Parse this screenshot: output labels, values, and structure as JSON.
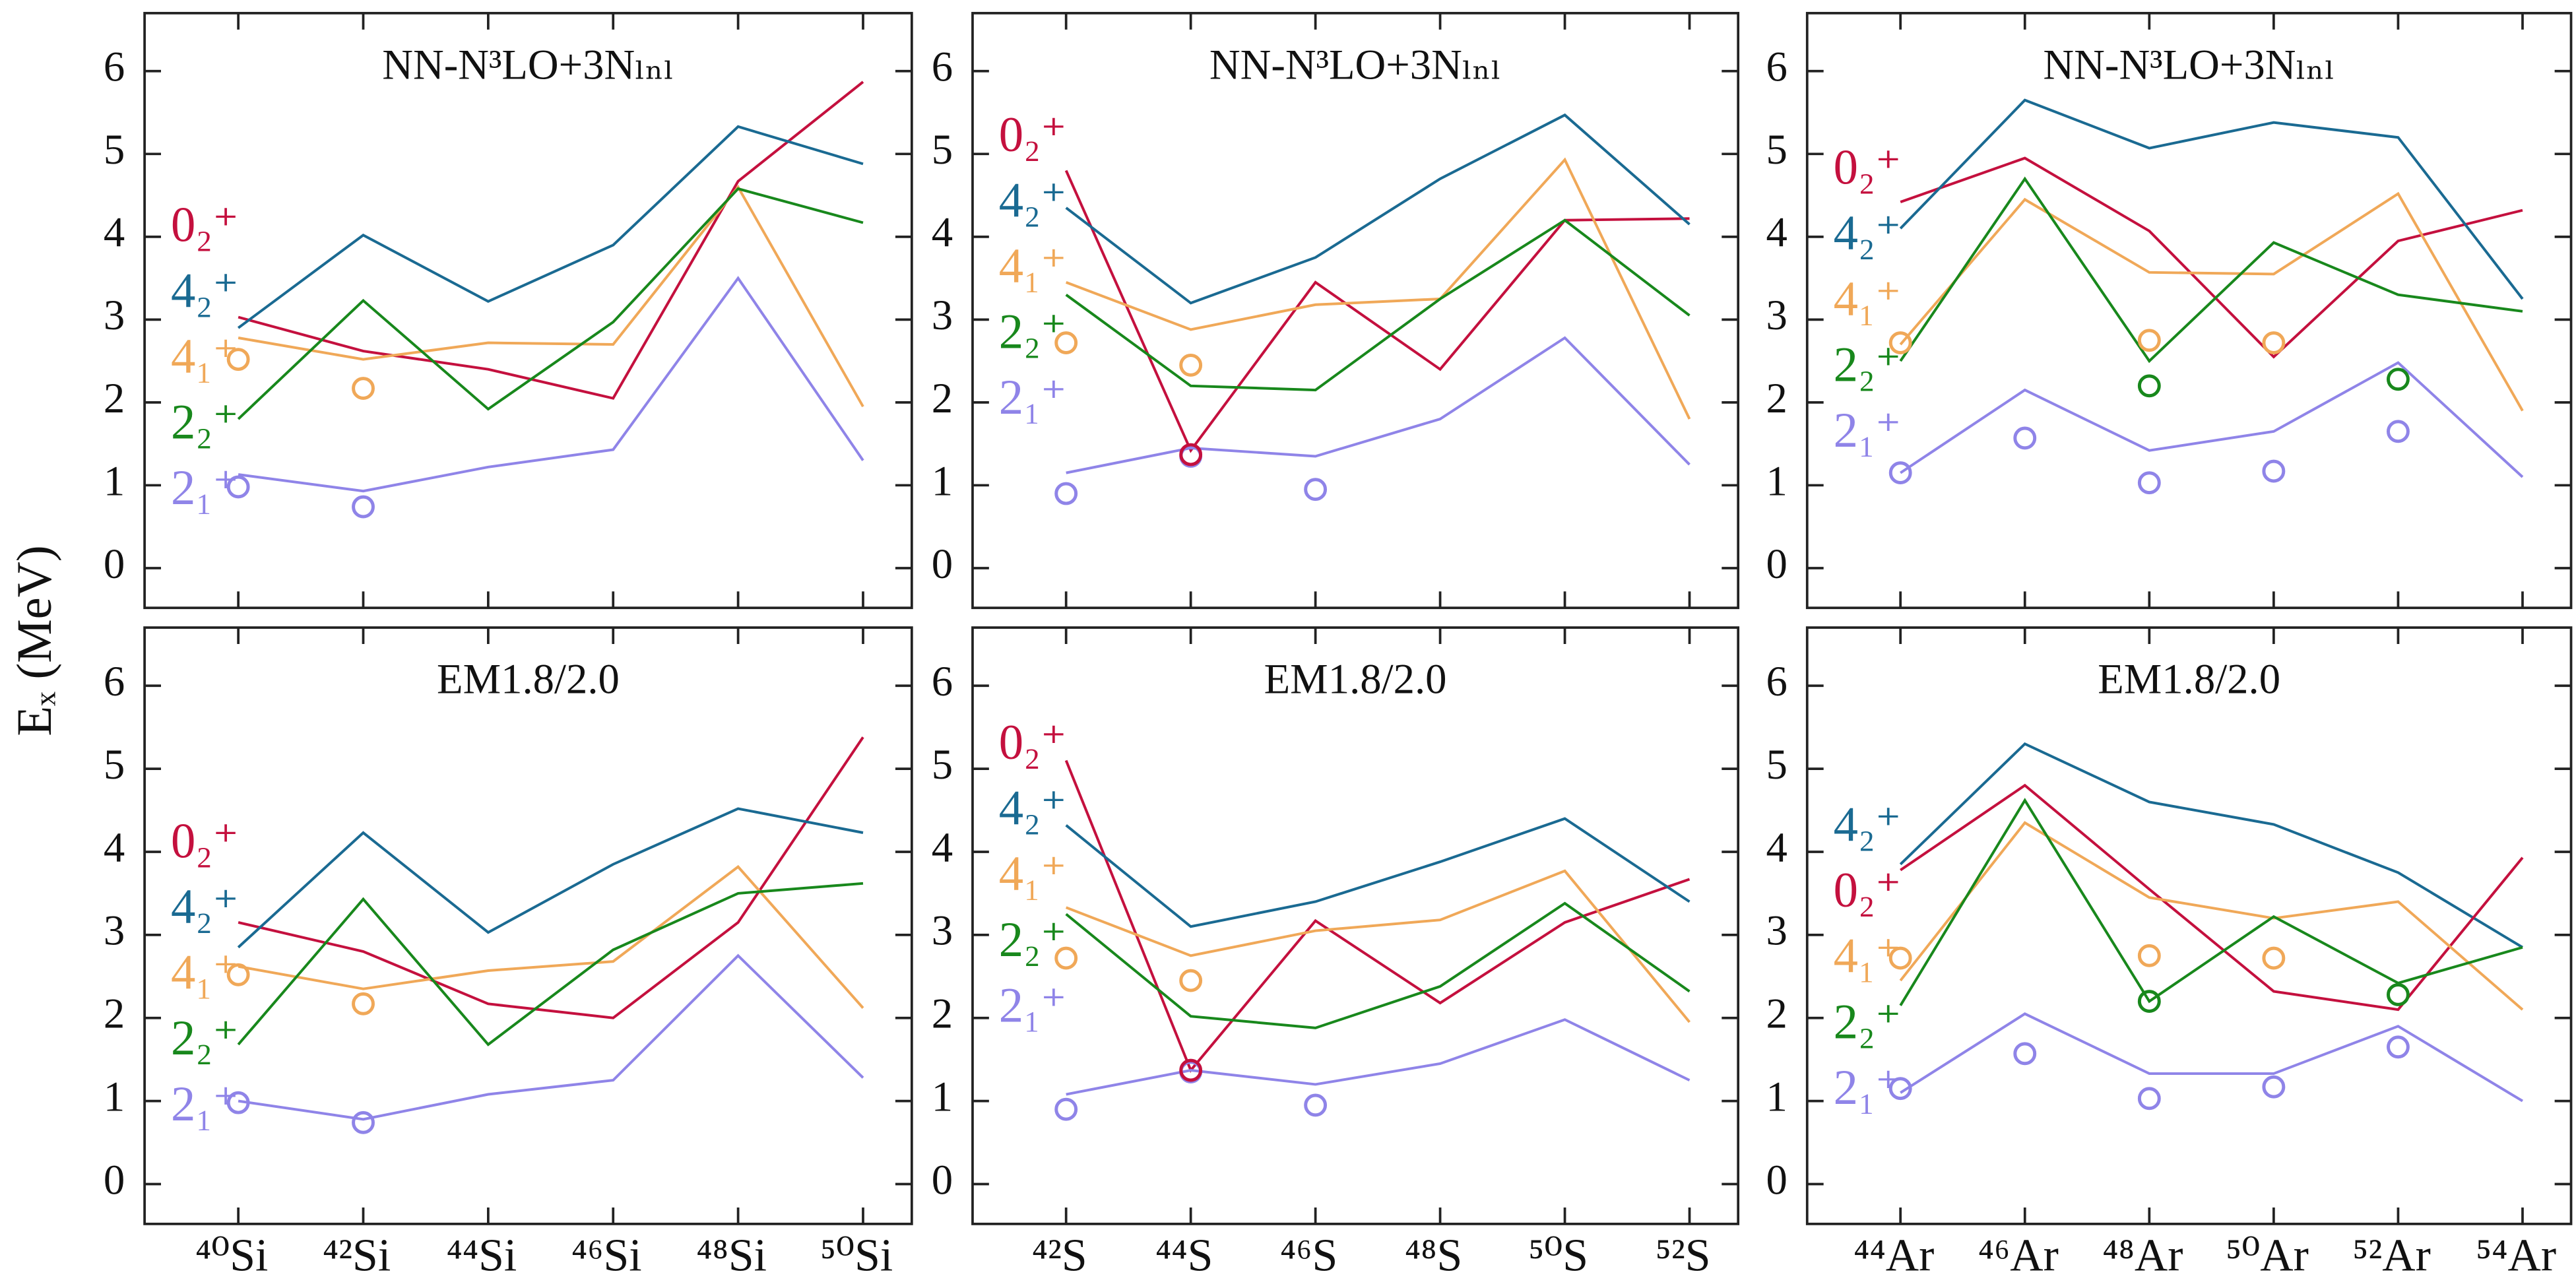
{
  "ylabel": "Eₓ (MeV)",
  "chart_data": [
    {
      "type": "line",
      "title": "NN-N³LO+3Nₗₙₗ",
      "ylim": [
        -0.48,
        6.7
      ],
      "yticks": [
        0,
        1,
        2,
        3,
        4,
        5,
        6
      ],
      "series": [
        {
          "name": "0₂⁺",
          "color": "#c4103e",
          "values": [
            3.03,
            2.62,
            2.4,
            2.05,
            4.67,
            5.87
          ]
        },
        {
          "name": "4₂⁺",
          "color": "#1a6a92",
          "values": [
            2.9,
            4.02,
            3.22,
            3.9,
            5.33,
            4.88
          ]
        },
        {
          "name": "4₁⁺",
          "color": "#f0a858",
          "values": [
            2.78,
            2.52,
            2.72,
            2.7,
            4.6,
            1.95
          ]
        },
        {
          "name": "2₂⁺",
          "color": "#18881c",
          "values": [
            1.8,
            3.23,
            1.92,
            2.97,
            4.58,
            4.17
          ]
        },
        {
          "name": "2₁⁺",
          "color": "#8f84e8",
          "values": [
            1.13,
            0.93,
            1.22,
            1.43,
            3.5,
            1.3
          ]
        },
        {
          "color": "#8f84e8",
          "marker": "circle",
          "values": [
            0.98,
            0.74,
            null,
            null,
            null,
            null
          ]
        },
        {
          "color": "#f0a858",
          "marker": "circle",
          "values": [
            2.52,
            2.17,
            null,
            null,
            null,
            null
          ]
        }
      ]
    },
    {
      "type": "line",
      "title": "NN-N³LO+3Nₗₙₗ",
      "ylim": [
        -0.48,
        6.7
      ],
      "yticks": [
        0,
        1,
        2,
        3,
        4,
        5,
        6
      ],
      "series": [
        {
          "name": "0₂⁺",
          "color": "#c4103e",
          "values": [
            4.8,
            1.42,
            3.45,
            2.4,
            4.2,
            4.22
          ]
        },
        {
          "name": "4₂⁺",
          "color": "#1a6a92",
          "values": [
            4.35,
            3.2,
            3.75,
            4.7,
            5.47,
            4.15
          ]
        },
        {
          "name": "4₁⁺",
          "color": "#f0a858",
          "values": [
            3.45,
            2.88,
            3.18,
            3.25,
            4.93,
            1.8
          ]
        },
        {
          "name": "2₂⁺",
          "color": "#18881c",
          "values": [
            3.3,
            2.2,
            2.15,
            3.25,
            4.2,
            3.05
          ]
        },
        {
          "name": "2₁⁺",
          "color": "#8f84e8",
          "values": [
            1.15,
            1.45,
            1.35,
            1.8,
            2.78,
            1.25
          ]
        },
        {
          "color": "#8f84e8",
          "marker": "circle",
          "values": [
            0.9,
            1.35,
            0.95,
            null,
            null,
            null
          ]
        },
        {
          "color": "#f0a858",
          "marker": "circle",
          "values": [
            2.72,
            2.45,
            null,
            null,
            null,
            null
          ]
        },
        {
          "color": "#c4103e",
          "marker": "circle",
          "values": [
            null,
            1.37,
            null,
            null,
            null,
            null
          ]
        }
      ]
    },
    {
      "type": "line",
      "title": "NN-N³LO+3Nₗₙₗ",
      "ylim": [
        -0.48,
        6.7
      ],
      "yticks": [
        0,
        1,
        2,
        3,
        4,
        5,
        6
      ],
      "series": [
        {
          "name": "0₂⁺",
          "color": "#c4103e",
          "values": [
            4.42,
            4.95,
            4.07,
            2.55,
            3.95,
            4.32
          ]
        },
        {
          "name": "4₂⁺",
          "color": "#1a6a92",
          "values": [
            4.1,
            5.65,
            5.07,
            5.38,
            5.2,
            3.25
          ]
        },
        {
          "name": "4₁⁺",
          "color": "#f0a858",
          "values": [
            2.7,
            4.45,
            3.57,
            3.55,
            4.52,
            1.9
          ]
        },
        {
          "name": "2₂⁺",
          "color": "#18881c",
          "values": [
            2.5,
            4.7,
            2.5,
            3.93,
            3.3,
            3.1
          ]
        },
        {
          "name": "2₁⁺",
          "color": "#8f84e8",
          "values": [
            1.15,
            2.15,
            1.42,
            1.65,
            2.48,
            1.1
          ]
        },
        {
          "color": "#8f84e8",
          "marker": "circle",
          "values": [
            1.15,
            1.57,
            1.03,
            1.17,
            1.65,
            null
          ]
        },
        {
          "color": "#f0a858",
          "marker": "circle",
          "values": [
            2.72,
            null,
            2.75,
            2.72,
            null,
            null
          ]
        },
        {
          "color": "#18881c",
          "marker": "circle",
          "values": [
            null,
            null,
            2.2,
            null,
            2.28,
            null
          ]
        }
      ]
    },
    {
      "type": "line",
      "title": "EM1.8/2.0",
      "ylim": [
        -0.48,
        6.7
      ],
      "yticks": [
        0,
        1,
        2,
        3,
        4,
        5,
        6
      ],
      "categories": [
        "⁴⁰Si",
        "⁴²Si",
        "⁴⁴Si",
        "⁴⁶Si",
        "⁴⁸Si",
        "⁵⁰Si"
      ],
      "series": [
        {
          "name": "0₂⁺",
          "color": "#c4103e",
          "values": [
            3.15,
            2.8,
            2.17,
            2.0,
            3.15,
            5.38
          ]
        },
        {
          "name": "4₂⁺",
          "color": "#1a6a92",
          "values": [
            2.85,
            4.23,
            3.03,
            3.85,
            4.52,
            4.23
          ]
        },
        {
          "name": "4₁⁺",
          "color": "#f0a858",
          "values": [
            2.62,
            2.35,
            2.57,
            2.68,
            3.82,
            2.12
          ]
        },
        {
          "name": "2₂⁺",
          "color": "#18881c",
          "values": [
            1.68,
            3.43,
            1.68,
            2.82,
            3.5,
            3.62
          ]
        },
        {
          "name": "2₁⁺",
          "color": "#8f84e8",
          "values": [
            1.0,
            0.78,
            1.08,
            1.25,
            2.75,
            1.28
          ]
        },
        {
          "color": "#8f84e8",
          "marker": "circle",
          "values": [
            0.98,
            0.74,
            null,
            null,
            null,
            null
          ]
        },
        {
          "color": "#f0a858",
          "marker": "circle",
          "values": [
            2.52,
            2.17,
            null,
            null,
            null,
            null
          ]
        }
      ]
    },
    {
      "type": "line",
      "title": "EM1.8/2.0",
      "ylim": [
        -0.48,
        6.7
      ],
      "yticks": [
        0,
        1,
        2,
        3,
        4,
        5,
        6
      ],
      "categories": [
        "⁴²S",
        "⁴⁴S",
        "⁴⁶S",
        "⁴⁸S",
        "⁵⁰S",
        "⁵²S"
      ],
      "series": [
        {
          "name": "0₂⁺",
          "color": "#c4103e",
          "values": [
            5.1,
            1.37,
            3.17,
            2.18,
            3.15,
            3.67
          ]
        },
        {
          "name": "4₂⁺",
          "color": "#1a6a92",
          "values": [
            4.32,
            3.1,
            3.4,
            3.88,
            4.4,
            3.4
          ]
        },
        {
          "name": "4₁⁺",
          "color": "#f0a858",
          "values": [
            3.33,
            2.75,
            3.05,
            3.18,
            3.77,
            1.95
          ]
        },
        {
          "name": "2₂⁺",
          "color": "#18881c",
          "values": [
            3.25,
            2.02,
            1.88,
            2.38,
            3.38,
            2.32
          ]
        },
        {
          "name": "2₁⁺",
          "color": "#8f84e8",
          "values": [
            1.08,
            1.37,
            1.2,
            1.45,
            1.98,
            1.25
          ]
        },
        {
          "color": "#8f84e8",
          "marker": "circle",
          "values": [
            0.9,
            1.35,
            0.95,
            null,
            null,
            null
          ]
        },
        {
          "color": "#f0a858",
          "marker": "circle",
          "values": [
            2.72,
            2.45,
            null,
            null,
            null,
            null
          ]
        },
        {
          "color": "#c4103e",
          "marker": "circle",
          "values": [
            null,
            1.37,
            null,
            null,
            null,
            null
          ]
        }
      ]
    },
    {
      "type": "line",
      "title": "EM1.8/2.0",
      "ylim": [
        -0.48,
        6.7
      ],
      "yticks": [
        0,
        1,
        2,
        3,
        4,
        5,
        6
      ],
      "categories": [
        "⁴⁴Ar",
        "⁴⁶Ar",
        "⁴⁸Ar",
        "⁵⁰Ar",
        "⁵²Ar",
        "⁵⁴Ar"
      ],
      "series": [
        {
          "name": "4₂⁺",
          "color": "#1a6a92",
          "values": [
            3.85,
            5.3,
            4.6,
            4.33,
            3.75,
            2.85
          ]
        },
        {
          "name": "0₂⁺",
          "color": "#c4103e",
          "values": [
            3.78,
            4.8,
            3.55,
            2.32,
            2.1,
            3.93
          ]
        },
        {
          "name": "4₁⁺",
          "color": "#f0a858",
          "values": [
            2.45,
            4.35,
            3.45,
            3.2,
            3.4,
            2.1
          ]
        },
        {
          "name": "2₂⁺",
          "color": "#18881c",
          "values": [
            2.15,
            4.62,
            2.2,
            3.22,
            2.42,
            2.85
          ]
        },
        {
          "name": "2₁⁺",
          "color": "#8f84e8",
          "values": [
            1.1,
            2.05,
            1.33,
            1.33,
            1.9,
            1.0
          ]
        },
        {
          "color": "#8f84e8",
          "marker": "circle",
          "values": [
            1.15,
            1.57,
            1.03,
            1.17,
            1.65,
            null
          ]
        },
        {
          "color": "#f0a858",
          "marker": "circle",
          "values": [
            2.72,
            null,
            2.75,
            2.72,
            null,
            null
          ]
        },
        {
          "color": "#18881c",
          "marker": "circle",
          "values": [
            null,
            null,
            2.2,
            null,
            2.28,
            null
          ]
        }
      ]
    }
  ]
}
